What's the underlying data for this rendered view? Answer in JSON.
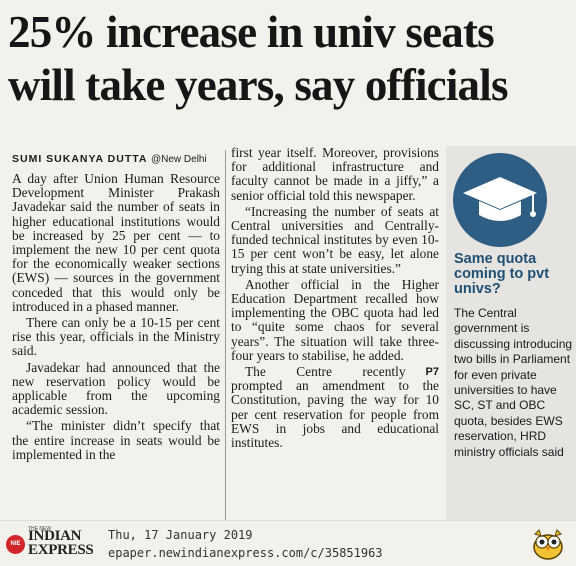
{
  "headline": {
    "line1": "25% increase in univ seats",
    "line2": "will take years, say officials"
  },
  "byline": {
    "author": "SUMI SUKANYA DUTTA",
    "place": "@New Delhi"
  },
  "column1": [
    "A day after Union Human Resource Development Minister Prakash Javadekar said the number of seats in higher educational institutions would be increased by 25 per cent — to implement the new 10 per cent quota for the economically weaker sections (EWS) — sources in the government conceded that this would only be introduced in a phased manner.",
    "There can only be a 10-15 per cent rise this year, officials in the Ministry said.",
    "Javadekar had announced that the new reservation policy would be applicable from the upcoming academic session.",
    "“The minister didn’t specify that the entire increase in seats would be implemented in the"
  ],
  "column2": [
    "first year itself. Moreover, provisions for additional infrastructure and faculty cannot be made in a jiffy,” a senior official told this newspaper.",
    "“Increasing the number of seats at Central universities and Centrally-funded technical institutes by even 10-15 per cent won’t be easy, let alone trying this at state universities.”",
    "Another official in the Higher Education Department recalled how implementing the OBC quota had led to “quite some chaos for several years”. The situation will take three-four years to stabilise, he added.",
    "The Centre recently prompted an amendment to the Constitution, paving the way for 10 per cent reservation for people from EWS in jobs and educational institutes."
  ],
  "page_ref": "P7",
  "sidebar": {
    "icon": "graduation-cap-icon",
    "title": "Same quota coming to pvt univs?",
    "body": "The Central government is discussing introducing two bills in Parliament for even private universities to have SC, ST and OBC quota, besides EWS reservation, HRD ministry officials said"
  },
  "footer": {
    "logo_small": "THE NEW",
    "logo_name": "INDIAN EXPRESS",
    "date": "Thu, 17 January 2019",
    "url": "epaper.newindianexpress.com/c/35851963"
  },
  "colors": {
    "sidebar_accent": "#1f4f74",
    "cap_circle": "#2f5e84",
    "logo_red": "#d3262b"
  }
}
